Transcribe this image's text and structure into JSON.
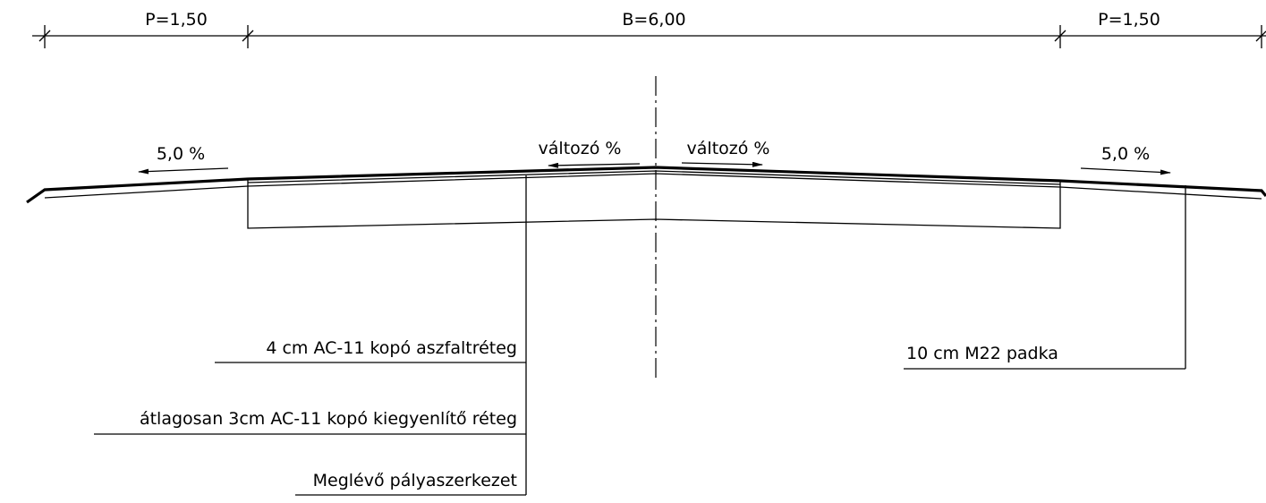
{
  "dimensions": [
    {
      "label": "P=1,50"
    },
    {
      "label": "B=6,00"
    },
    {
      "label": "P=1,50"
    }
  ],
  "slopes": [
    {
      "label": "5,0 %"
    },
    {
      "label": "változó %"
    },
    {
      "label": "változó %"
    },
    {
      "label": "5,0 %"
    }
  ],
  "layers": [
    {
      "label": "4 cm AC-11 kopó aszfaltréteg"
    },
    {
      "label": "átlagosan 3cm AC-11 kopó kiegyenlítő réteg"
    },
    {
      "label": "Meglévő pályaszerkezet"
    },
    {
      "label": "10 cm M22 padka"
    }
  ]
}
